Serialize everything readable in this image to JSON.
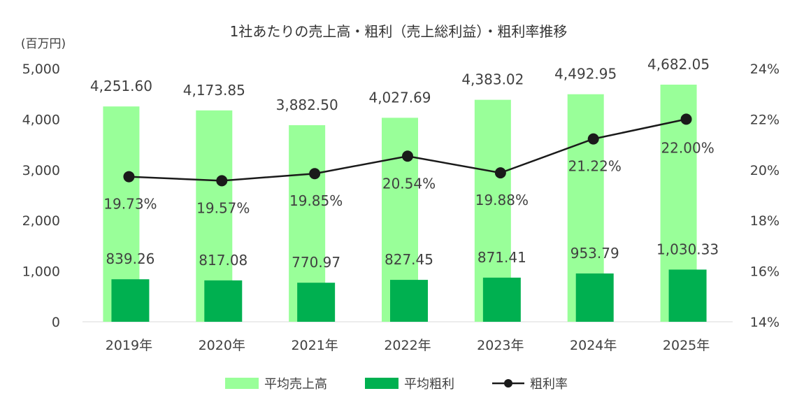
{
  "chart_data": {
    "type": "bar",
    "title": "1社あたりの売上高・粗利（売上総利益）・粗利率推移",
    "y_unit_label": "(百万円)",
    "categories": [
      "2019年",
      "2020年",
      "2021年",
      "2022年",
      "2023年",
      "2024年",
      "2025年"
    ],
    "series": [
      {
        "name": "平均売上高",
        "kind": "bar",
        "axis": "left",
        "color": "#99ff99",
        "values": [
          4251.6,
          4173.85,
          3882.5,
          4027.69,
          4383.02,
          4492.95,
          4682.05
        ],
        "labels": [
          "4,251.60",
          "4,173.85",
          "3,882.50",
          "4,027.69",
          "4,383.02",
          "4,492.95",
          "4,682.05"
        ]
      },
      {
        "name": "平均粗利",
        "kind": "bar",
        "axis": "left",
        "color": "#00b050",
        "values": [
          839.26,
          817.08,
          770.97,
          827.45,
          871.41,
          953.79,
          1030.33
        ],
        "labels": [
          "839.26",
          "817.08",
          "770.97",
          "827.45",
          "871.41",
          "953.79",
          "1,030.33"
        ]
      },
      {
        "name": "粗利率",
        "kind": "line",
        "axis": "right",
        "color": "#1a1a1a",
        "values": [
          19.73,
          19.57,
          19.85,
          20.54,
          19.88,
          21.22,
          22.0
        ],
        "labels": [
          "19.73%",
          "19.57%",
          "19.85%",
          "20.54%",
          "19.88%",
          "21.22%",
          "22.00%"
        ]
      }
    ],
    "ylim": [
      0,
      5000
    ],
    "y_ticks": [
      "0",
      "1,000",
      "2,000",
      "3,000",
      "4,000",
      "5,000"
    ],
    "y2lim": [
      14,
      24
    ],
    "y2_ticks": [
      "14%",
      "16%",
      "18%",
      "20%",
      "22%",
      "24%"
    ],
    "grid": false,
    "legend_position": "bottom"
  }
}
